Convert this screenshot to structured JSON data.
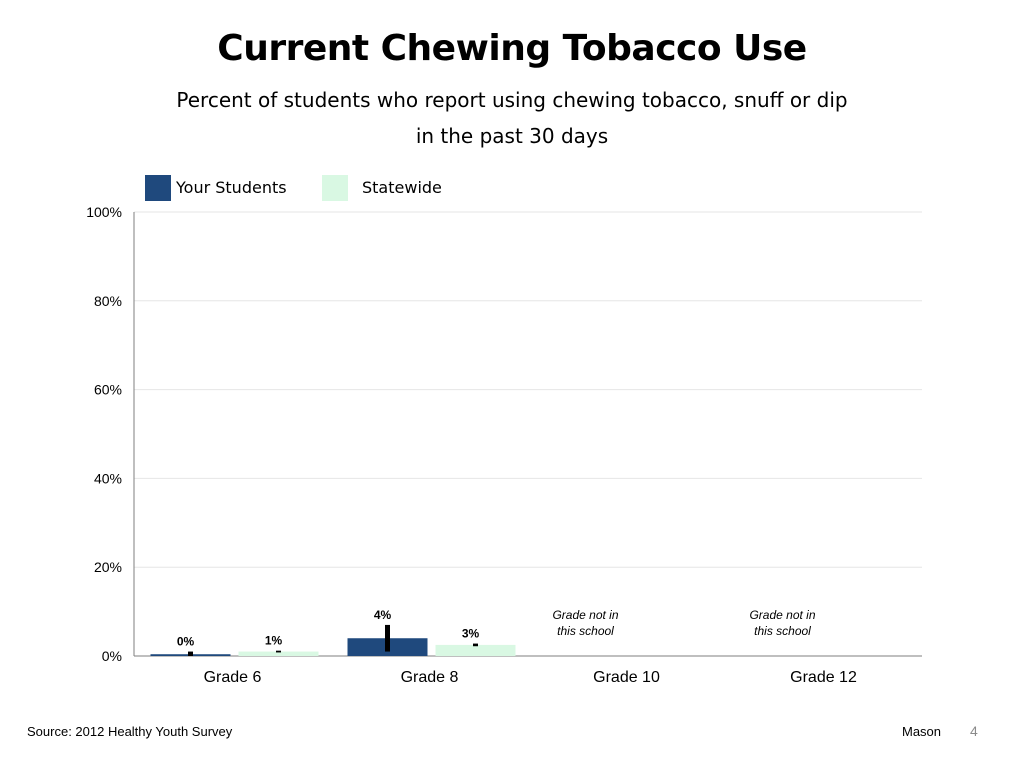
{
  "slide": {
    "title": "Current Chewing Tobacco Use",
    "subtitle_line1": "Percent of students who report using chewing tobacco, snuff or dip",
    "subtitle_line2": "in the past 30 days",
    "source": "Source: 2012 Healthy Youth Survey",
    "school": "Mason",
    "page_number": "4"
  },
  "colors": {
    "your_students": "#1f497d",
    "statewide": "#d9f8e3",
    "error_bar": "#000000",
    "gridline": "#e6e6e6",
    "axis": "#7f7f7f"
  },
  "chart_data": {
    "type": "bar",
    "categories": [
      "Grade 6",
      "Grade 8",
      "Grade 10",
      "Grade 12"
    ],
    "series": [
      {
        "name": "Your Students",
        "values": [
          0.4,
          4,
          null,
          null
        ],
        "labels": [
          "0%",
          "4%",
          "",
          ""
        ],
        "error_low": [
          0,
          1,
          null,
          null
        ],
        "error_high": [
          1,
          7,
          null,
          null
        ]
      },
      {
        "name": "Statewide",
        "values": [
          1,
          2.5,
          null,
          null
        ],
        "labels": [
          "1%",
          "3%",
          "",
          ""
        ],
        "error_low": [
          0.8,
          2.2,
          null,
          null
        ],
        "error_high": [
          1.2,
          2.8,
          null,
          null
        ]
      }
    ],
    "annotations": [
      "",
      "",
      "Grade not in this school",
      "Grade not in this school"
    ],
    "ylim": [
      0,
      100
    ],
    "yticks": [
      "0%",
      "20%",
      "40%",
      "60%",
      "80%",
      "100%"
    ],
    "ytick_values": [
      0,
      20,
      40,
      60,
      80,
      100
    ],
    "legend_position": "top-left",
    "grid": true
  }
}
